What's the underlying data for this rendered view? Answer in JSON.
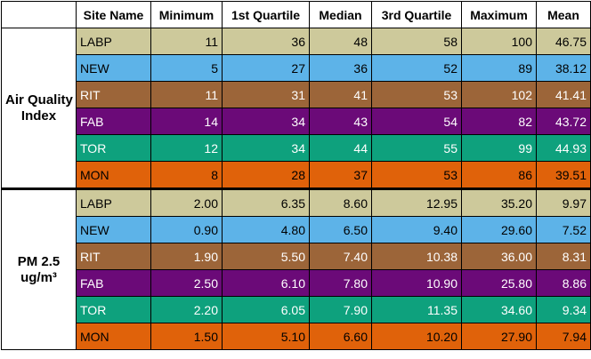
{
  "table": {
    "headers": [
      "",
      "Site Name",
      "Minimum",
      "1st Quartile",
      "Median",
      "3rd Quartile",
      "Maximum",
      "Mean"
    ],
    "groups": [
      {
        "label_lines": [
          "Air Quality",
          "Index"
        ],
        "rows": [
          {
            "site": "LABP",
            "color": "#cdc99b",
            "text_color": "#000000",
            "values": [
              "11",
              "36",
              "48",
              "58",
              "100",
              "46.75"
            ]
          },
          {
            "site": "NEW",
            "color": "#5db3e8",
            "text_color": "#000000",
            "values": [
              "5",
              "27",
              "36",
              "52",
              "89",
              "38.12"
            ]
          },
          {
            "site": "RIT",
            "color": "#9c6539",
            "text_color": "#ffffff",
            "values": [
              "11",
              "31",
              "41",
              "53",
              "102",
              "41.41"
            ]
          },
          {
            "site": "FAB",
            "color": "#6b0a78",
            "text_color": "#ffffff",
            "values": [
              "14",
              "34",
              "43",
              "54",
              "82",
              "43.72"
            ]
          },
          {
            "site": "TOR",
            "color": "#0ea17d",
            "text_color": "#ffffff",
            "values": [
              "12",
              "34",
              "44",
              "55",
              "99",
              "44.93"
            ]
          },
          {
            "site": "MON",
            "color": "#e0620a",
            "text_color": "#000000",
            "values": [
              "8",
              "28",
              "37",
              "53",
              "86",
              "39.51"
            ]
          }
        ]
      },
      {
        "label_lines": [
          "PM 2.5",
          "ug/m³"
        ],
        "rows": [
          {
            "site": "LABP",
            "color": "#cdc99b",
            "text_color": "#000000",
            "values": [
              "2.00",
              "6.35",
              "8.60",
              "12.95",
              "35.20",
              "9.97"
            ]
          },
          {
            "site": "NEW",
            "color": "#5db3e8",
            "text_color": "#000000",
            "values": [
              "0.90",
              "4.80",
              "6.50",
              "9.40",
              "29.60",
              "7.52"
            ]
          },
          {
            "site": "RIT",
            "color": "#9c6539",
            "text_color": "#ffffff",
            "values": [
              "1.90",
              "5.50",
              "7.40",
              "10.38",
              "36.00",
              "8.31"
            ]
          },
          {
            "site": "FAB",
            "color": "#6b0a78",
            "text_color": "#ffffff",
            "values": [
              "2.50",
              "6.10",
              "7.80",
              "10.90",
              "25.80",
              "8.86"
            ]
          },
          {
            "site": "TOR",
            "color": "#0ea17d",
            "text_color": "#ffffff",
            "values": [
              "2.20",
              "6.05",
              "7.90",
              "11.35",
              "34.60",
              "9.34"
            ]
          },
          {
            "site": "MON",
            "color": "#e0620a",
            "text_color": "#000000",
            "values": [
              "1.50",
              "5.10",
              "6.60",
              "10.20",
              "27.90",
              "7.94"
            ]
          }
        ]
      }
    ]
  }
}
